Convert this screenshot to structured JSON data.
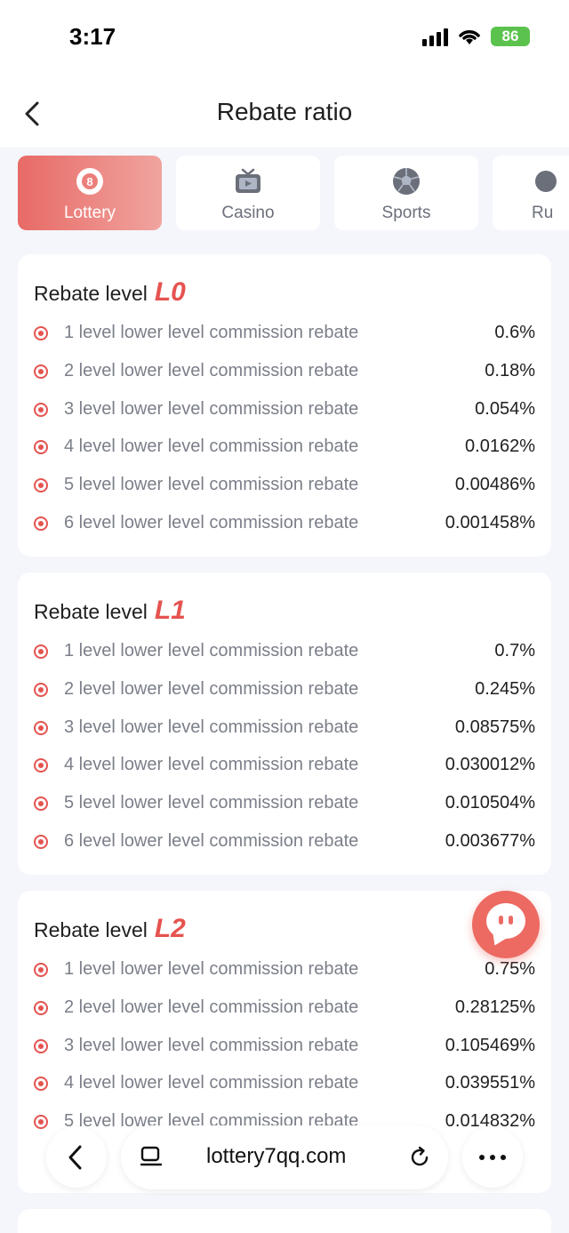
{
  "status_bar": {
    "time": "3:17",
    "battery": "86"
  },
  "header": {
    "title": "Rebate ratio"
  },
  "tabs": [
    {
      "label": "Lottery",
      "icon": "lottery-ball-icon",
      "active": true
    },
    {
      "label": "Casino",
      "icon": "tv-icon",
      "active": false
    },
    {
      "label": "Sports",
      "icon": "soccer-ball-icon",
      "active": false
    },
    {
      "label": "Ru",
      "icon": "game-icon",
      "active": false
    }
  ],
  "cards": [
    {
      "title": "Rebate level",
      "level": "L0",
      "rows": [
        {
          "label": "1 level lower level commission rebate",
          "value": "0.6%"
        },
        {
          "label": "2 level lower level commission rebate",
          "value": "0.18%"
        },
        {
          "label": "3 level lower level commission rebate",
          "value": "0.054%"
        },
        {
          "label": "4 level lower level commission rebate",
          "value": "0.0162%"
        },
        {
          "label": "5 level lower level commission rebate",
          "value": "0.00486%"
        },
        {
          "label": "6 level lower level commission rebate",
          "value": "0.001458%"
        }
      ]
    },
    {
      "title": "Rebate level",
      "level": "L1",
      "rows": [
        {
          "label": "1 level lower level commission rebate",
          "value": "0.7%"
        },
        {
          "label": "2 level lower level commission rebate",
          "value": "0.245%"
        },
        {
          "label": "3 level lower level commission rebate",
          "value": "0.08575%"
        },
        {
          "label": "4 level lower level commission rebate",
          "value": "0.030012%"
        },
        {
          "label": "5 level lower level commission rebate",
          "value": "0.010504%"
        },
        {
          "label": "6 level lower level commission rebate",
          "value": "0.003677%"
        }
      ]
    },
    {
      "title": "Rebate level",
      "level": "L2",
      "rows": [
        {
          "label": "1 level lower level commission rebate",
          "value": "0.75%"
        },
        {
          "label": "2 level lower level commission rebate",
          "value": "0.28125%"
        },
        {
          "label": "3 level lower level commission rebate",
          "value": "0.105469%"
        },
        {
          "label": "4 level lower level commission rebate",
          "value": "0.039551%"
        },
        {
          "label": "5 level lower level commission rebate",
          "value": "0.014832%"
        }
      ]
    }
  ],
  "browser": {
    "url": "lottery7qq.com"
  },
  "colors": {
    "accent": "#e5534f",
    "tab_gradient_start": "#e86a66",
    "tab_gradient_end": "#f0a49f",
    "background": "#f4f6fb"
  }
}
